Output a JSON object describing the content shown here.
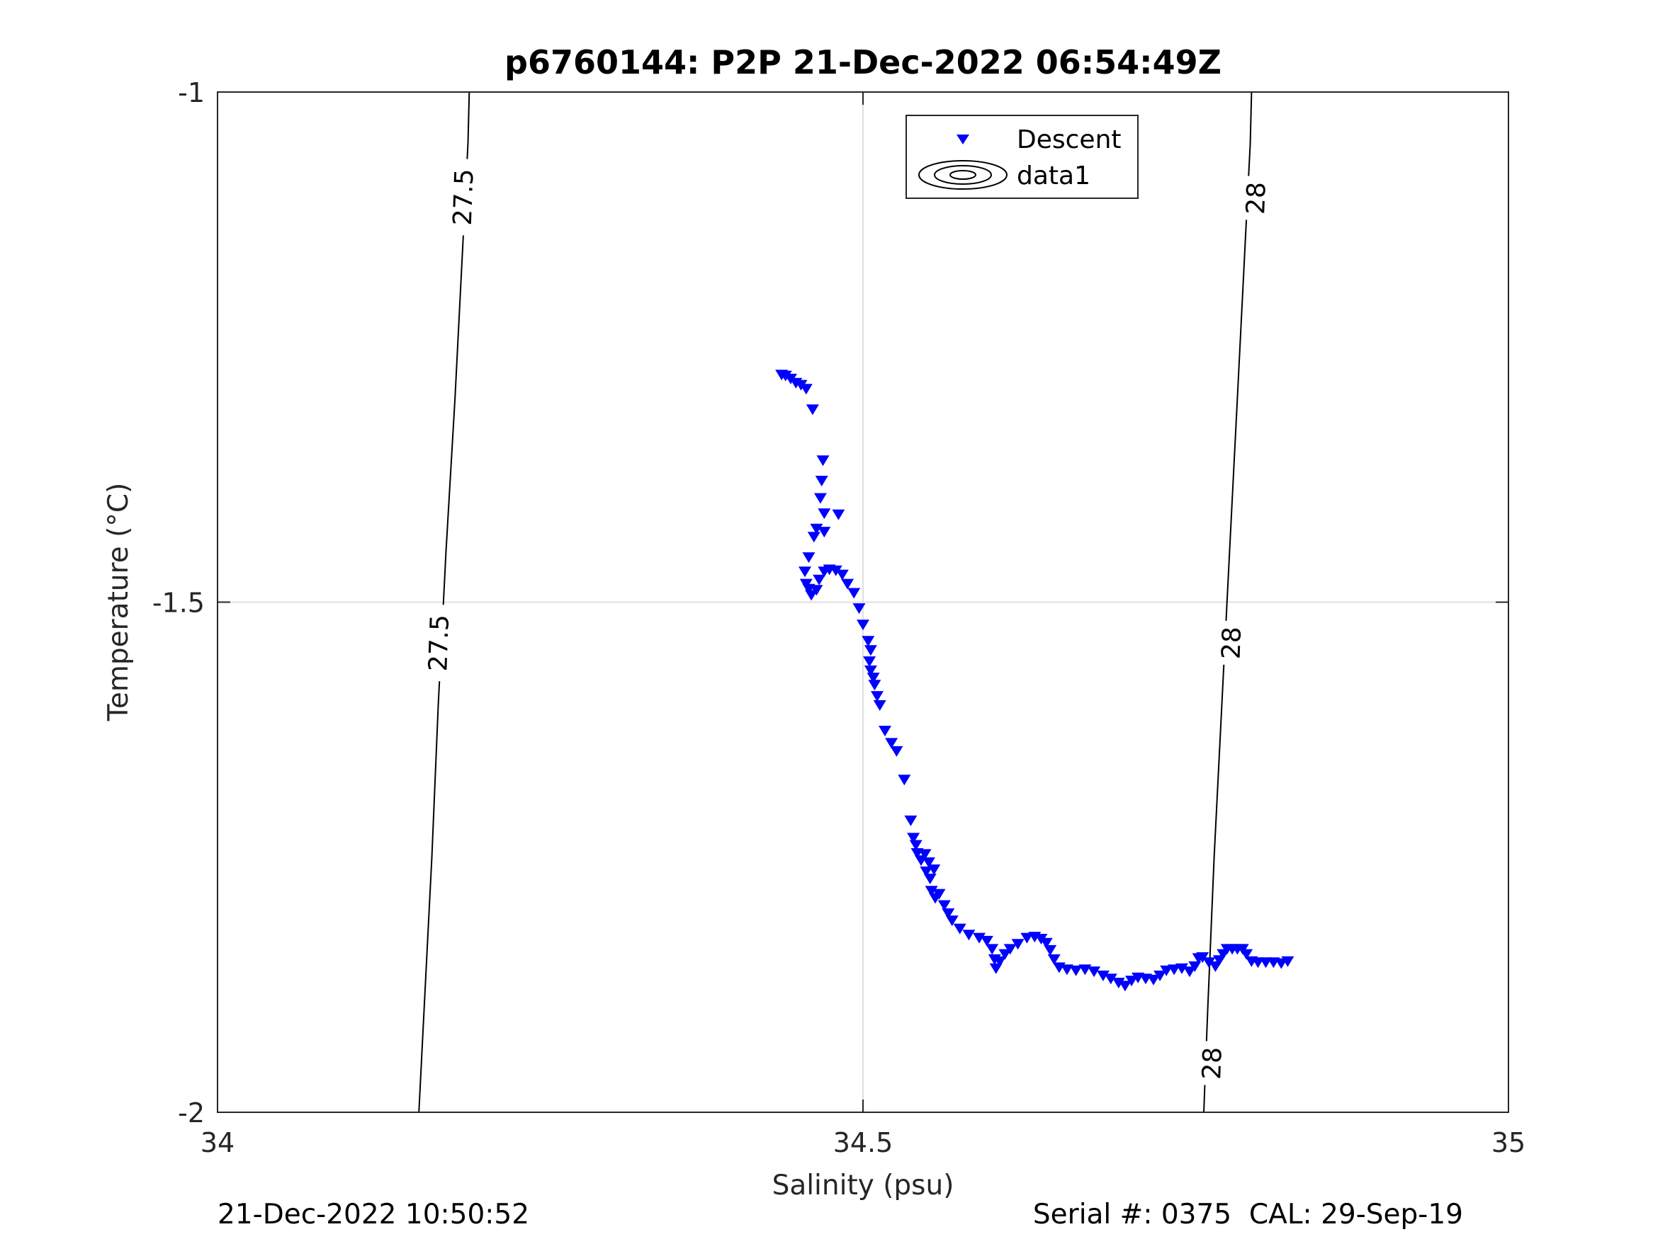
{
  "chart_data": {
    "type": "scatter",
    "title": "p6760144: P2P 21-Dec-2022 06:54:49Z",
    "xlabel": "Salinity (psu)",
    "ylabel": "Temperature (°C)",
    "xlim": [
      34,
      35
    ],
    "ylim": [
      -2,
      -1
    ],
    "x_ticks": [
      "34",
      "34.5",
      "35"
    ],
    "y_ticks": [
      "-1",
      "-1.5",
      "-2"
    ],
    "grid": true,
    "legend": {
      "position": "top-center",
      "entries": [
        "Descent",
        "data1"
      ]
    },
    "series": [
      {
        "name": "Descent",
        "marker": "downward-triangle",
        "color": "#0000ff",
        "points": [
          [
            34.437,
            -1.277
          ],
          [
            34.44,
            -1.278
          ],
          [
            34.444,
            -1.281
          ],
          [
            34.448,
            -1.285
          ],
          [
            34.452,
            -1.287
          ],
          [
            34.456,
            -1.291
          ],
          [
            34.461,
            -1.311
          ],
          [
            34.469,
            -1.361
          ],
          [
            34.468,
            -1.381
          ],
          [
            34.467,
            -1.398
          ],
          [
            34.47,
            -1.413
          ],
          [
            34.464,
            -1.428
          ],
          [
            34.462,
            -1.436
          ],
          [
            34.47,
            -1.431
          ],
          [
            34.481,
            -1.414
          ],
          [
            34.458,
            -1.456
          ],
          [
            34.455,
            -1.47
          ],
          [
            34.456,
            -1.482
          ],
          [
            34.458,
            -1.487
          ],
          [
            34.46,
            -1.493
          ],
          [
            34.464,
            -1.488
          ],
          [
            34.466,
            -1.478
          ],
          [
            34.47,
            -1.47
          ],
          [
            34.474,
            -1.468
          ],
          [
            34.479,
            -1.469
          ],
          [
            34.484,
            -1.473
          ],
          [
            34.488,
            -1.482
          ],
          [
            34.493,
            -1.491
          ],
          [
            34.497,
            -1.506
          ],
          [
            34.5,
            -1.522
          ],
          [
            34.504,
            -1.538
          ],
          [
            34.506,
            -1.547
          ],
          [
            34.505,
            -1.558
          ],
          [
            34.506,
            -1.567
          ],
          [
            34.508,
            -1.574
          ],
          [
            34.509,
            -1.581
          ],
          [
            34.511,
            -1.592
          ],
          [
            34.513,
            -1.601
          ],
          [
            34.517,
            -1.626
          ],
          [
            34.522,
            -1.638
          ],
          [
            34.526,
            -1.646
          ],
          [
            34.532,
            -1.674
          ],
          [
            34.537,
            -1.714
          ],
          [
            34.539,
            -1.731
          ],
          [
            34.541,
            -1.738
          ],
          [
            34.542,
            -1.746
          ],
          [
            34.545,
            -1.753
          ],
          [
            34.548,
            -1.747
          ],
          [
            34.551,
            -1.755
          ],
          [
            34.549,
            -1.764
          ],
          [
            34.552,
            -1.771
          ],
          [
            34.555,
            -1.762
          ],
          [
            34.553,
            -1.783
          ],
          [
            34.556,
            -1.79
          ],
          [
            34.559,
            -1.786
          ],
          [
            34.563,
            -1.797
          ],
          [
            34.566,
            -1.805
          ],
          [
            34.569,
            -1.812
          ],
          [
            34.575,
            -1.82
          ],
          [
            34.582,
            -1.826
          ],
          [
            34.59,
            -1.829
          ],
          [
            34.596,
            -1.832
          ],
          [
            34.6,
            -1.84
          ],
          [
            34.602,
            -1.85
          ],
          [
            34.603,
            -1.859
          ],
          [
            34.606,
            -1.852
          ],
          [
            34.61,
            -1.845
          ],
          [
            34.614,
            -1.84
          ],
          [
            34.62,
            -1.835
          ],
          [
            34.627,
            -1.829
          ],
          [
            34.633,
            -1.828
          ],
          [
            34.638,
            -1.83
          ],
          [
            34.642,
            -1.834
          ],
          [
            34.645,
            -1.841
          ],
          [
            34.648,
            -1.85
          ],
          [
            34.652,
            -1.858
          ],
          [
            34.658,
            -1.86
          ],
          [
            34.665,
            -1.861
          ],
          [
            34.672,
            -1.86
          ],
          [
            34.679,
            -1.862
          ],
          [
            34.686,
            -1.866
          ],
          [
            34.692,
            -1.869
          ],
          [
            34.698,
            -1.873
          ],
          [
            34.703,
            -1.876
          ],
          [
            34.708,
            -1.871
          ],
          [
            34.713,
            -1.868
          ],
          [
            34.719,
            -1.869
          ],
          [
            34.725,
            -1.87
          ],
          [
            34.73,
            -1.866
          ],
          [
            34.735,
            -1.861
          ],
          [
            34.741,
            -1.86
          ],
          [
            34.747,
            -1.859
          ],
          [
            34.753,
            -1.862
          ],
          [
            34.757,
            -1.857
          ],
          [
            34.76,
            -1.849
          ],
          [
            34.763,
            -1.848
          ],
          [
            34.768,
            -1.853
          ],
          [
            34.773,
            -1.857
          ],
          [
            34.776,
            -1.851
          ],
          [
            34.779,
            -1.845
          ],
          [
            34.782,
            -1.84
          ],
          [
            34.786,
            -1.84
          ],
          [
            34.79,
            -1.84
          ],
          [
            34.794,
            -1.84
          ],
          [
            34.797,
            -1.845
          ],
          [
            34.801,
            -1.852
          ],
          [
            34.806,
            -1.853
          ],
          [
            34.812,
            -1.853
          ],
          [
            34.818,
            -1.853
          ],
          [
            34.824,
            -1.854
          ],
          [
            34.829,
            -1.852
          ]
        ]
      }
    ],
    "contours": [
      {
        "level": "27.5",
        "points": [
          [
            34.156,
            -2
          ],
          [
            34.16,
            -1.9
          ],
          [
            34.166,
            -1.75
          ],
          [
            34.171,
            -1.6
          ],
          [
            34.177,
            -1.45
          ],
          [
            34.184,
            -1.3
          ],
          [
            34.19,
            -1.15
          ],
          [
            34.194,
            -1.05
          ],
          [
            34.195,
            -1
          ]
        ]
      },
      {
        "level": "28",
        "points": [
          [
            34.764,
            -2
          ],
          [
            34.767,
            -1.9
          ],
          [
            34.772,
            -1.75
          ],
          [
            34.778,
            -1.6
          ],
          [
            34.784,
            -1.45
          ],
          [
            34.79,
            -1.3
          ],
          [
            34.796,
            -1.15
          ],
          [
            34.8,
            -1.05
          ],
          [
            34.801,
            -1
          ]
        ]
      }
    ],
    "contour_labels": [
      {
        "text": "27.5",
        "x": 34.19,
        "y": -1.103
      },
      {
        "text": "27.5",
        "x": 34.171,
        "y": -1.54
      },
      {
        "text": "28",
        "x": 34.804,
        "y": -1.104
      },
      {
        "text": "28",
        "x": 34.785,
        "y": -1.54
      },
      {
        "text": "28",
        "x": 34.77,
        "y": -1.952
      }
    ]
  },
  "footer": {
    "left": "21-Dec-2022 10:50:52",
    "right": "Serial #: 0375  CAL: 29-Sep-19"
  },
  "colors": {
    "marker": "#0000ff",
    "axis": "#262626",
    "grid": "#dfdfdf",
    "contour": "#000000"
  }
}
